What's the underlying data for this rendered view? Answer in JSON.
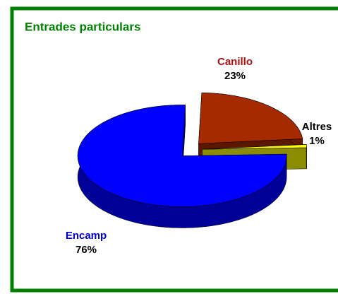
{
  "chart_data": {
    "type": "pie",
    "title": "Entrades particulars",
    "categories": [
      "Encamp",
      "Canillo",
      "Altres"
    ],
    "values": [
      76,
      23,
      1
    ],
    "value_labels": [
      "76%",
      "23%",
      "1%"
    ],
    "colors": [
      "#0000ff",
      "#a52a00",
      "#ffff00"
    ],
    "label_colors": [
      "#0000cc",
      "#b01010",
      "#000000"
    ]
  }
}
